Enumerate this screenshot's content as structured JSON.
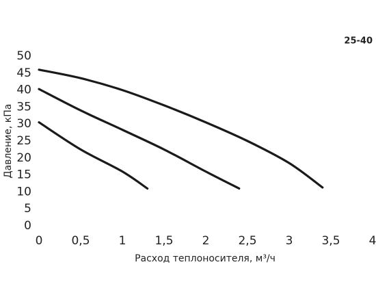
{
  "chart_data": {
    "type": "line",
    "title": "25-40",
    "x_label": "Расход теплоносителя, м³/ч",
    "y_label": "Давление, кПа",
    "xlim": [
      0,
      4
    ],
    "ylim": [
      0,
      50
    ],
    "xticks": [
      0,
      {
        "value": 0.5,
        "label": "0,5"
      },
      1,
      {
        "value": 1.5,
        "label": "1,5"
      },
      2,
      {
        "value": 2.5,
        "label": "2,5"
      },
      3,
      {
        "value": 3.5,
        "label": "3,5"
      },
      4
    ],
    "yticks": [
      0,
      5,
      10,
      15,
      20,
      25,
      30,
      35,
      40,
      45,
      50
    ],
    "grid": false,
    "series": [
      {
        "color": "#1a1a1a",
        "x": [
          0,
          0.5,
          1,
          1.5,
          2,
          2.5,
          3,
          3.4
        ],
        "values": [
          46,
          43.5,
          40,
          35.5,
          30.5,
          25,
          18.5,
          11.3
        ]
      },
      {
        "color": "#1a1a1a",
        "x": [
          0,
          0.5,
          1,
          1.5,
          2,
          2.4
        ],
        "values": [
          40.3,
          34,
          28.3,
          22.5,
          16,
          11
        ]
      },
      {
        "color": "#1a1a1a",
        "x": [
          0,
          0.5,
          1,
          1.3
        ],
        "values": [
          30.5,
          22.5,
          16,
          11
        ]
      }
    ]
  }
}
